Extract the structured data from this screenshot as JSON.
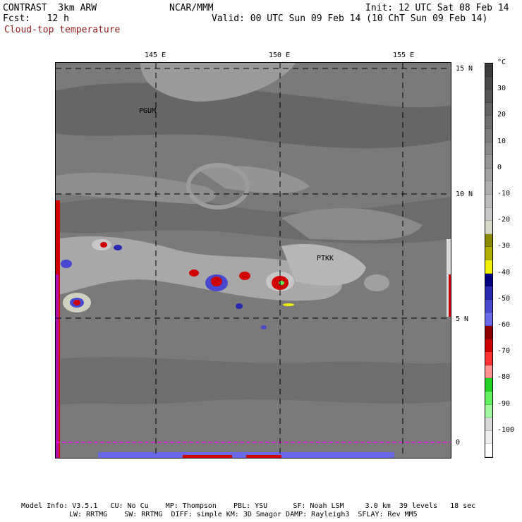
{
  "header": {
    "model": "CONTRAST  3km ARW",
    "org": "NCAR/MMM",
    "init": "Init: 12 UTC Sat 08 Feb 14",
    "fcst": "Fcst:   12 h",
    "valid": "Valid: 00 UTC Sun 09 Feb 14 (10 ChT Sun 09 Feb 14)",
    "field": "Cloud-top temperature"
  },
  "map": {
    "lon_labels": [
      "145 E",
      "150 E",
      "155 E"
    ],
    "lat_labels": [
      "15 N",
      "10 N",
      "5 N",
      "0"
    ],
    "stations": [
      "PGUM",
      "PTKK"
    ]
  },
  "colorbar": {
    "unit": "°C",
    "labels": [
      "30",
      "20",
      "10",
      "0",
      "-10",
      "-20",
      "-30",
      "-40",
      "-50",
      "-60",
      "-70",
      "-80",
      "-90",
      "-100"
    ],
    "colors": [
      "#3c3c3c",
      "#484848",
      "#555555",
      "#626262",
      "#6e6e6e",
      "#7b7b7b",
      "#888888",
      "#959595",
      "#a2a2a2",
      "#aeaeae",
      "#bcbcbc",
      "#c8c8c8",
      "#d8d8c8",
      "#8a8a00",
      "#b0b000",
      "#f0f000",
      "#000080",
      "#2828b0",
      "#4848d0",
      "#6a6ae8",
      "#900000",
      "#d00000",
      "#ff3030",
      "#ff9090",
      "#20d020",
      "#60f060",
      "#a0f8a0",
      "#d8d8d8",
      "#eeeeee",
      "#ffffff"
    ]
  },
  "footer": {
    "line1": "Model Info: V3.5.1   CU: No Cu    MP: Thompson    PBL: YSU      SF: Noah LSM     3.0 km  39 levels   18 sec",
    "line2": "LW: RRTMG    SW: RRTMG  DIFF: simple KM: 3D Smagor DAMP: Rayleigh3  SFLAY: Rev MM5"
  }
}
